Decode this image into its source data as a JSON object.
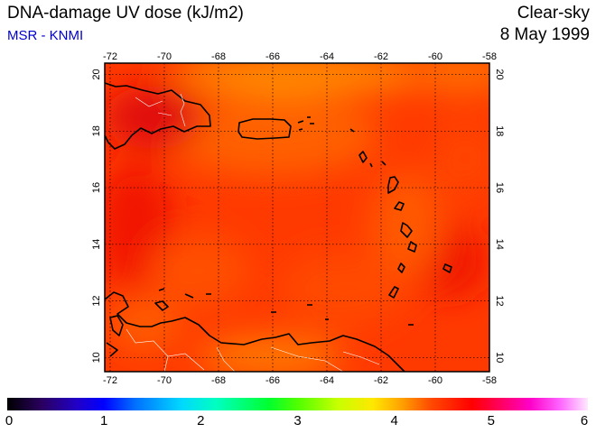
{
  "header": {
    "title": "DNA-damage UV dose (kJ/m2)",
    "source": "MSR - KNMI",
    "condition": "Clear-sky",
    "date": "8 May 1999"
  },
  "map": {
    "lon_ticks": [
      "-72",
      "-70",
      "-68",
      "-66",
      "-64",
      "-62",
      "-60",
      "-58"
    ],
    "lat_ticks": [
      "10",
      "12",
      "14",
      "16",
      "18",
      "20"
    ],
    "colors": {
      "field_base": "#ff3a00",
      "field_red": "#f81a00",
      "field_orange": "#ff7800",
      "coast": "#000000",
      "border": "#ffffff"
    }
  },
  "colorbar": {
    "ticks": [
      "0",
      "1",
      "2",
      "3",
      "4",
      "5",
      "6"
    ]
  }
}
